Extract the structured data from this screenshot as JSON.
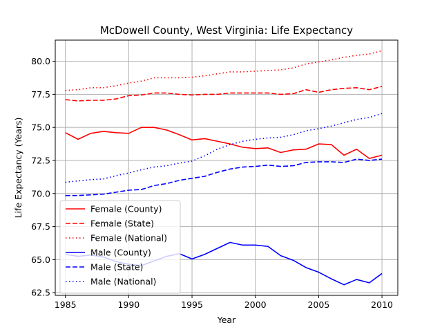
{
  "chart_data": {
    "type": "line",
    "title": "McDowell County, West Virginia: Life Expectancy",
    "xlabel": "Year",
    "ylabel": "Life Expectancy (Years)",
    "xlim": [
      1984.2,
      2011.25
    ],
    "ylim": [
      62.3,
      81.6
    ],
    "xticks": [
      1985,
      1990,
      1995,
      2000,
      2005,
      2010
    ],
    "yticks": [
      62.5,
      65.0,
      67.5,
      70.0,
      72.5,
      75.0,
      77.5,
      80.0
    ],
    "ytick_labels": [
      "62.5",
      "65.0",
      "67.5",
      "70.0",
      "72.5",
      "75.0",
      "77.5",
      "80.0"
    ],
    "grid": true,
    "legend_position": "lower-left",
    "x": [
      1985,
      1986,
      1987,
      1988,
      1989,
      1990,
      1991,
      1992,
      1993,
      1994,
      1995,
      1996,
      1997,
      1998,
      1999,
      2000,
      2001,
      2002,
      2003,
      2004,
      2005,
      2006,
      2007,
      2008,
      2009,
      2010
    ],
    "series": [
      {
        "name": "Female (County)",
        "color": "#ff0000",
        "dash": "solid",
        "values": [
          74.6,
          74.1,
          74.55,
          74.7,
          74.6,
          74.55,
          75.0,
          75.0,
          74.8,
          74.45,
          74.05,
          74.15,
          73.95,
          73.75,
          73.5,
          73.4,
          73.45,
          73.1,
          73.3,
          73.35,
          73.75,
          73.7,
          72.9,
          73.35,
          72.65,
          72.9
        ]
      },
      {
        "name": "Female (State)",
        "color": "#ff0000",
        "dash": "dashed",
        "values": [
          77.1,
          77.0,
          77.05,
          77.05,
          77.15,
          77.4,
          77.45,
          77.6,
          77.6,
          77.5,
          77.45,
          77.5,
          77.5,
          77.6,
          77.6,
          77.6,
          77.6,
          77.5,
          77.55,
          77.85,
          77.65,
          77.85,
          77.95,
          78.0,
          77.85,
          78.1
        ]
      },
      {
        "name": "Female (National)",
        "color": "#ff0000",
        "dash": "dotted",
        "values": [
          77.8,
          77.85,
          78.0,
          78.0,
          78.15,
          78.35,
          78.5,
          78.75,
          78.75,
          78.75,
          78.8,
          78.9,
          79.05,
          79.2,
          79.2,
          79.25,
          79.3,
          79.35,
          79.5,
          79.8,
          79.95,
          80.1,
          80.3,
          80.45,
          80.55,
          80.8
        ]
      },
      {
        "name": "Male (County)",
        "color": "#0000ff",
        "dash": "solid",
        "values": [
          65.4,
          65.25,
          65.35,
          65.2,
          64.85,
          64.65,
          64.55,
          64.9,
          65.25,
          65.45,
          65.05,
          65.4,
          65.85,
          66.3,
          66.1,
          66.1,
          66.0,
          65.3,
          64.95,
          64.4,
          64.05,
          63.55,
          63.1,
          63.5,
          63.25,
          63.95
        ]
      },
      {
        "name": "Male (State)",
        "color": "#0000ff",
        "dash": "dashed",
        "values": [
          69.85,
          69.85,
          69.9,
          69.95,
          70.1,
          70.25,
          70.3,
          70.6,
          70.75,
          71.0,
          71.15,
          71.3,
          71.6,
          71.85,
          72.0,
          72.05,
          72.15,
          72.05,
          72.1,
          72.35,
          72.4,
          72.4,
          72.35,
          72.6,
          72.5,
          72.6
        ]
      },
      {
        "name": "Male (National)",
        "color": "#0000ff",
        "dash": "dotted",
        "values": [
          70.85,
          70.95,
          71.05,
          71.1,
          71.35,
          71.55,
          71.8,
          72.0,
          72.1,
          72.3,
          72.45,
          72.85,
          73.35,
          73.7,
          73.95,
          74.1,
          74.2,
          74.25,
          74.45,
          74.75,
          74.9,
          75.1,
          75.35,
          75.6,
          75.75,
          76.05
        ]
      }
    ]
  }
}
